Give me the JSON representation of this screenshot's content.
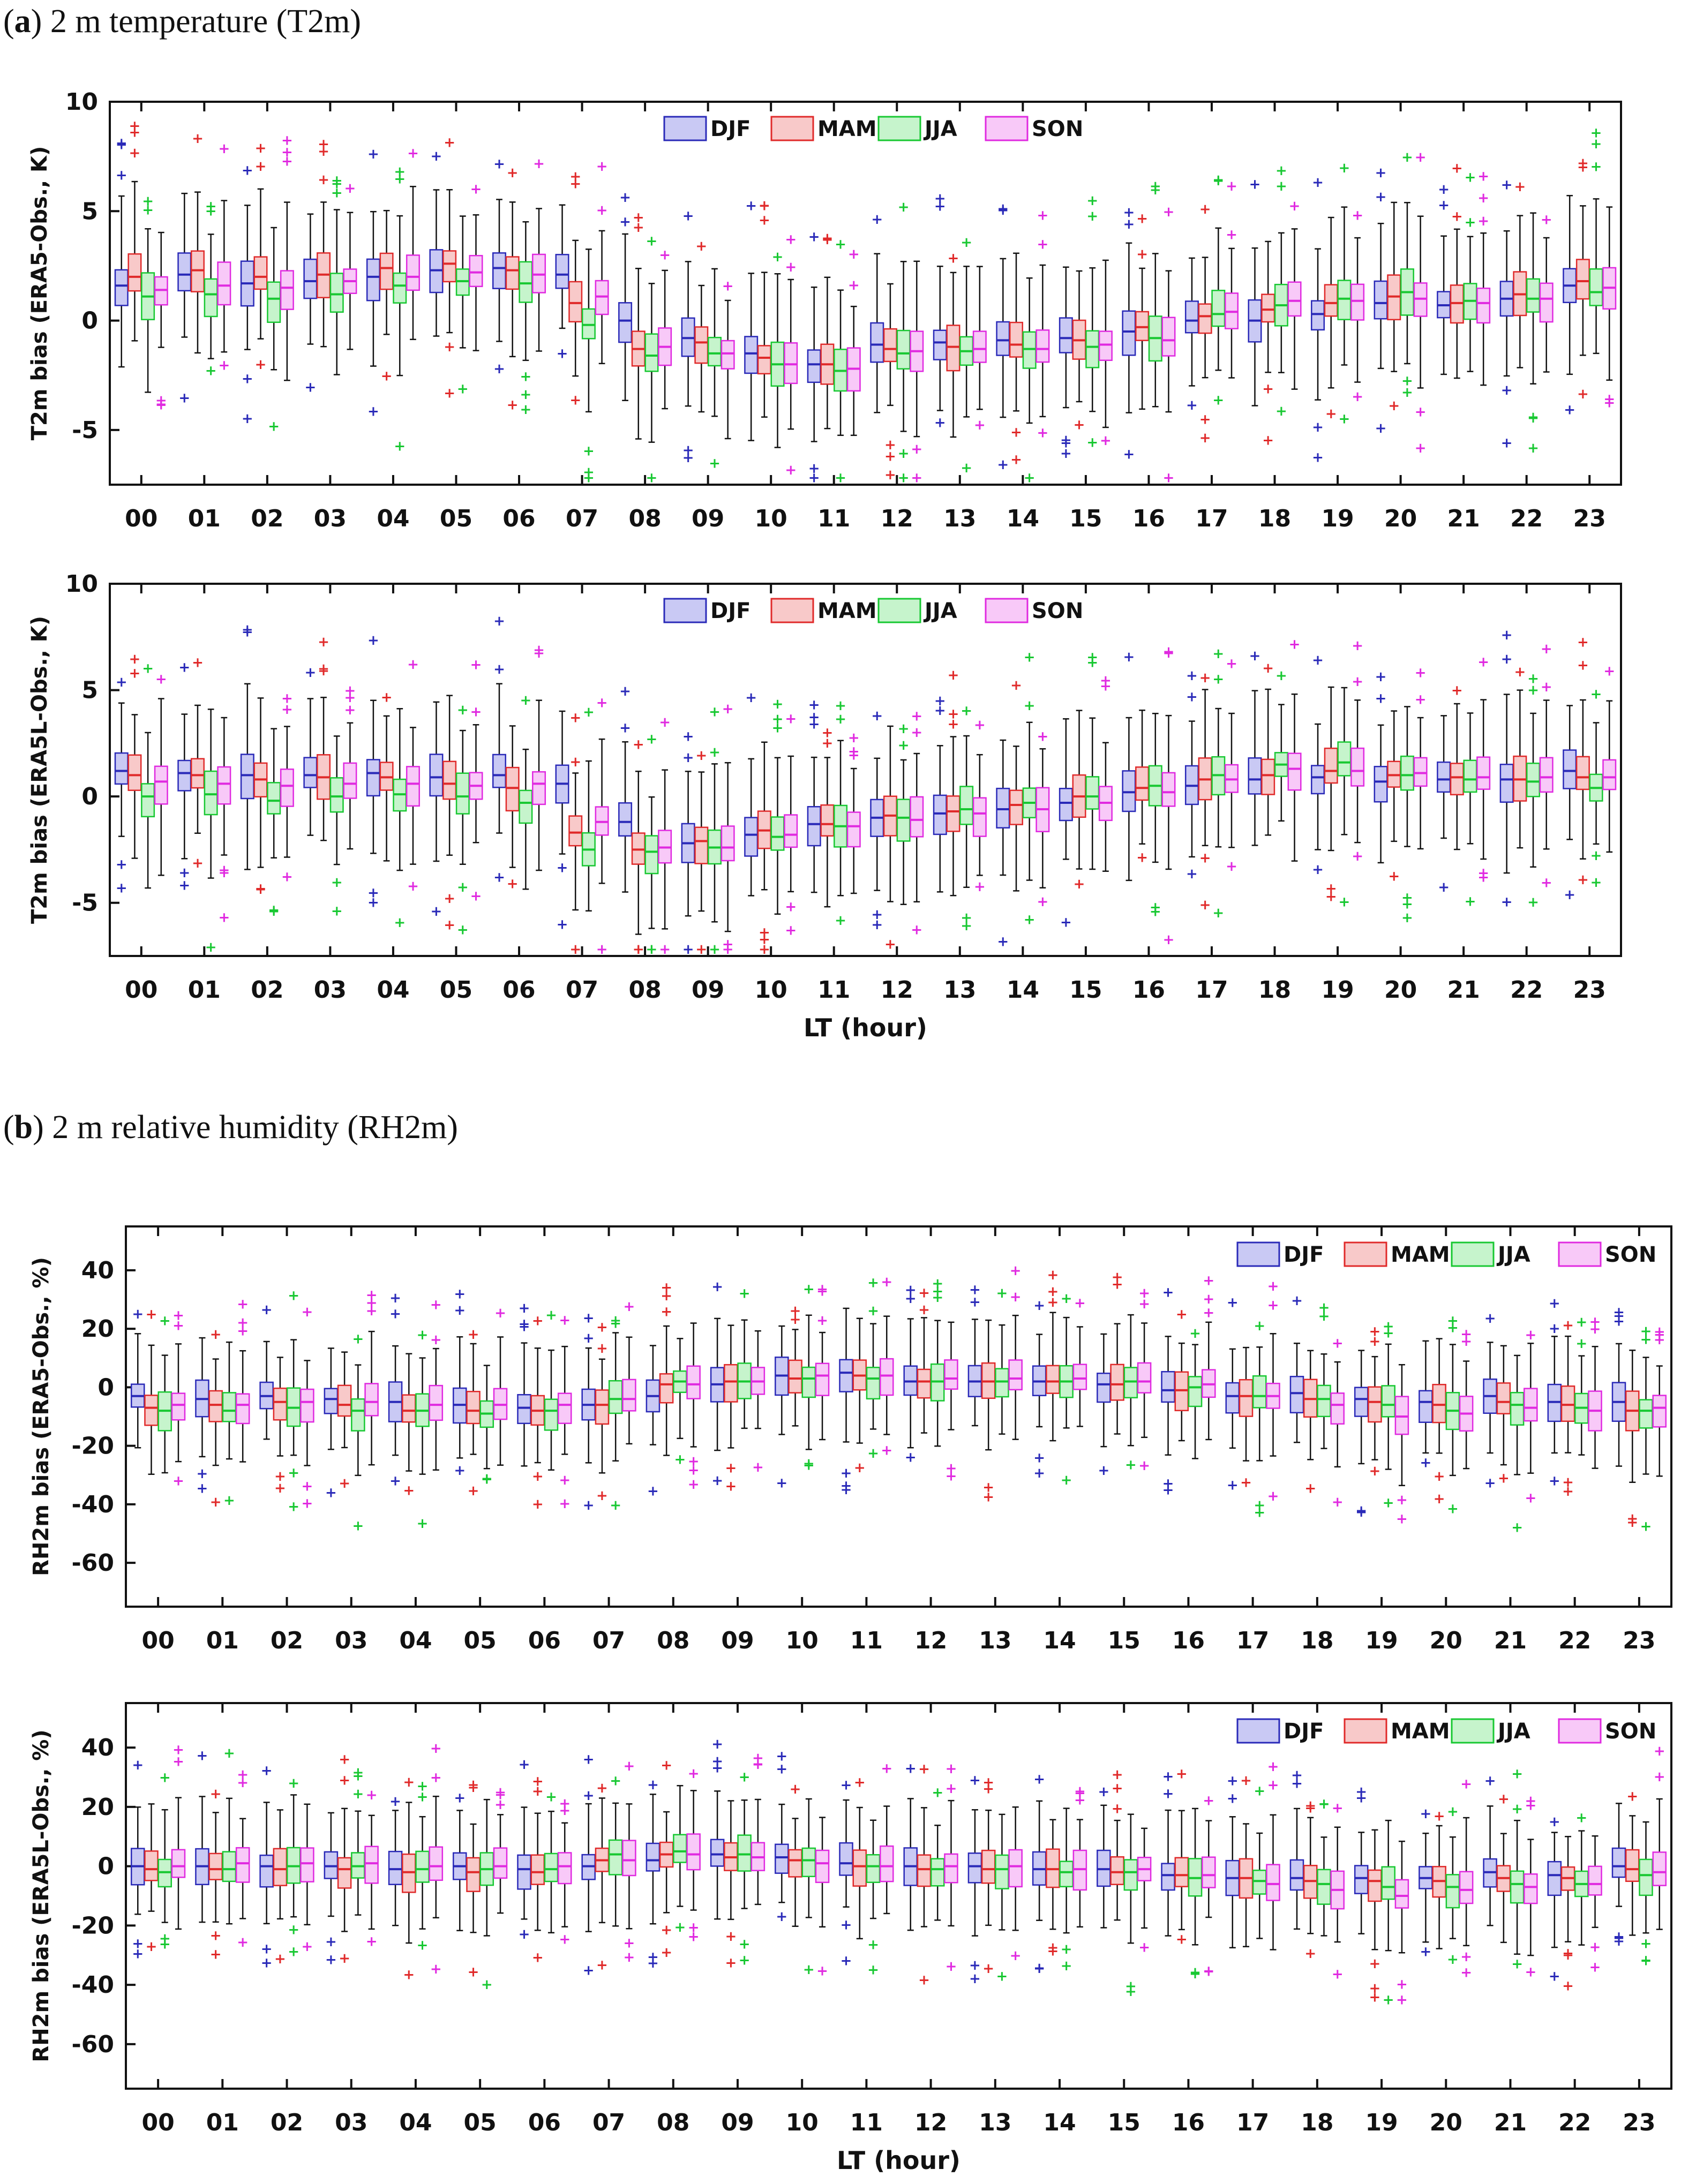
{
  "panels": [
    {
      "bold": "a",
      "text": "2 m temperature (T2m)"
    },
    {
      "bold": "b",
      "text": "2 m relative humidity (RH2m)"
    }
  ],
  "seasons": [
    {
      "name": "DJF",
      "stroke": "#2a2ab8",
      "fill": "#c9c9f4"
    },
    {
      "name": "MAM",
      "stroke": "#e02a2a",
      "fill": "#f8c9c9"
    },
    {
      "name": "JJA",
      "stroke": "#18c832",
      "fill": "#c6f4cc"
    },
    {
      "name": "SON",
      "stroke": "#e02ae0",
      "fill": "#f8c9f8"
    }
  ],
  "common_xlabel": "LT (hour)",
  "chart_data": [
    {
      "type": "box",
      "id": "t2m-era5",
      "ylabel": "T2m bias (ERA5-Obs., K)",
      "xlabel": "",
      "ylim": [
        -7.5,
        10
      ],
      "yticks": [
        10,
        5,
        0,
        -5
      ],
      "categories": [
        "00",
        "01",
        "02",
        "03",
        "04",
        "05",
        "06",
        "07",
        "08",
        "09",
        "10",
        "11",
        "12",
        "13",
        "14",
        "15",
        "16",
        "17",
        "18",
        "19",
        "20",
        "21",
        "22",
        "23"
      ],
      "series": [
        {
          "name": "DJF",
          "median": [
            1.6,
            2.1,
            1.7,
            1.8,
            2.0,
            2.3,
            2.4,
            2.1,
            0.0,
            -0.8,
            -1.5,
            -2.0,
            -1.1,
            -1.0,
            -0.9,
            -0.8,
            -0.5,
            0.0,
            0.0,
            0.3,
            0.8,
            0.7,
            1.0,
            1.6
          ]
        },
        {
          "name": "MAM",
          "median": [
            2.0,
            2.3,
            2.0,
            2.1,
            2.4,
            2.6,
            2.3,
            0.8,
            -1.3,
            -1.0,
            -1.7,
            -2.0,
            -1.3,
            -1.2,
            -1.1,
            -0.9,
            -0.3,
            0.2,
            0.5,
            0.8,
            1.1,
            0.8,
            1.2,
            1.8
          ]
        },
        {
          "name": "JJA",
          "median": [
            1.1,
            1.2,
            1.0,
            1.2,
            1.6,
            1.8,
            1.7,
            -0.2,
            -1.6,
            -1.5,
            -2.0,
            -2.3,
            -1.5,
            -1.4,
            -1.3,
            -1.2,
            -0.8,
            0.3,
            0.7,
            1.0,
            1.3,
            0.9,
            1.0,
            1.3
          ]
        },
        {
          "name": "SON",
          "median": [
            1.4,
            1.6,
            1.5,
            1.8,
            2.0,
            2.2,
            2.1,
            1.1,
            -1.2,
            -1.5,
            -2.0,
            -2.2,
            -1.4,
            -1.3,
            -1.3,
            -1.1,
            -0.9,
            0.4,
            0.9,
            0.9,
            1.0,
            0.8,
            1.0,
            1.5
          ]
        }
      ]
    },
    {
      "type": "box",
      "id": "t2m-era5l",
      "ylabel": "T2m bias (ERA5L-Obs., K)",
      "xlabel": "LT (hour)",
      "ylim": [
        -7.5,
        10
      ],
      "yticks": [
        10,
        5,
        0,
        -5
      ],
      "categories": [
        "00",
        "01",
        "02",
        "03",
        "04",
        "05",
        "06",
        "07",
        "08",
        "09",
        "10",
        "11",
        "12",
        "13",
        "14",
        "15",
        "16",
        "17",
        "18",
        "19",
        "20",
        "21",
        "22",
        "23"
      ],
      "series": [
        {
          "name": "DJF",
          "median": [
            1.2,
            1.1,
            1.0,
            1.0,
            1.1,
            0.9,
            1.0,
            0.6,
            -1.2,
            -2.2,
            -1.8,
            -1.3,
            -1.0,
            -0.8,
            -0.6,
            -0.3,
            0.2,
            0.5,
            0.8,
            0.9,
            0.7,
            0.8,
            0.8,
            1.2
          ]
        },
        {
          "name": "MAM",
          "median": [
            1.0,
            1.0,
            0.8,
            0.9,
            0.9,
            0.6,
            0.4,
            -1.7,
            -2.5,
            -2.1,
            -1.6,
            -1.3,
            -0.9,
            -0.7,
            -0.4,
            0.0,
            0.4,
            0.8,
            1.0,
            1.2,
            1.0,
            0.9,
            0.8,
            0.9
          ]
        },
        {
          "name": "JJA",
          "median": [
            0.0,
            0.1,
            -0.2,
            0.0,
            0.1,
            0.0,
            -0.3,
            -2.5,
            -2.6,
            -2.4,
            -1.9,
            -1.4,
            -1.0,
            -0.6,
            -0.3,
            0.0,
            0.5,
            1.0,
            1.5,
            1.6,
            1.0,
            0.8,
            0.7,
            0.4
          ]
        },
        {
          "name": "SON",
          "median": [
            0.7,
            0.6,
            0.5,
            0.6,
            0.6,
            0.5,
            0.6,
            -1.2,
            -2.4,
            -2.4,
            -1.8,
            -1.4,
            -1.1,
            -0.8,
            -0.6,
            -0.3,
            0.2,
            0.8,
            1.3,
            1.2,
            1.1,
            0.9,
            0.9,
            0.9
          ]
        }
      ]
    },
    {
      "type": "box",
      "id": "rh2m-era5",
      "ylabel": "RH2m bias (ERA5-Obs., %)",
      "xlabel": "",
      "ylim": [
        -75,
        55
      ],
      "yticks": [
        40,
        20,
        0,
        -20,
        -40,
        -60
      ],
      "categories": [
        "00",
        "01",
        "02",
        "03",
        "04",
        "05",
        "06",
        "07",
        "08",
        "09",
        "10",
        "11",
        "12",
        "13",
        "14",
        "15",
        "16",
        "17",
        "18",
        "19",
        "20",
        "21",
        "22",
        "23"
      ],
      "series": [
        {
          "name": "DJF",
          "median": [
            -3,
            -4,
            -3,
            -4,
            -5,
            -6,
            -7,
            -6,
            -3,
            1,
            4,
            5,
            2,
            2,
            2,
            1,
            -1,
            -3,
            -2,
            -4,
            -5,
            -3,
            -5,
            -5
          ]
        },
        {
          "name": "MAM",
          "median": [
            -7,
            -6,
            -5,
            -6,
            -8,
            -8,
            -8,
            -6,
            1,
            2,
            3,
            4,
            2,
            2,
            2,
            1,
            -1,
            -3,
            -4,
            -5,
            -6,
            -5,
            -6,
            -8
          ]
        },
        {
          "name": "JJA",
          "median": [
            -8,
            -8,
            -7,
            -8,
            -8,
            -9,
            -8,
            -4,
            2,
            2,
            3,
            3,
            2,
            2,
            2,
            2,
            0,
            -3,
            -4,
            -6,
            -8,
            -6,
            -7,
            -8
          ]
        },
        {
          "name": "SON",
          "median": [
            -6,
            -6,
            -5,
            -5,
            -6,
            -6,
            -6,
            -4,
            1,
            2,
            4,
            4,
            3,
            3,
            3,
            2,
            1,
            -3,
            -6,
            -10,
            -9,
            -7,
            -8,
            -7
          ]
        }
      ]
    },
    {
      "type": "box",
      "id": "rh2m-era5l",
      "ylabel": "RH2m bias (ERA5L-Obs., %)",
      "xlabel": "LT (hour)",
      "ylim": [
        -75,
        55
      ],
      "yticks": [
        40,
        20,
        0,
        -20,
        -40,
        -60
      ],
      "categories": [
        "00",
        "01",
        "02",
        "03",
        "04",
        "05",
        "06",
        "07",
        "08",
        "09",
        "10",
        "11",
        "12",
        "13",
        "14",
        "15",
        "16",
        "17",
        "18",
        "19",
        "20",
        "21",
        "22",
        "23"
      ],
      "series": [
        {
          "name": "DJF",
          "median": [
            0,
            0,
            0,
            0,
            -1,
            0,
            -1,
            0,
            2,
            4,
            3,
            1,
            0,
            0,
            -1,
            -1,
            -3,
            -4,
            -4,
            -4,
            -4,
            -2,
            -3,
            0
          ]
        },
        {
          "name": "MAM",
          "median": [
            -1,
            -1,
            -1,
            -1,
            -2,
            -2,
            -2,
            2,
            4,
            3,
            2,
            0,
            -1,
            -1,
            -1,
            -2,
            -3,
            -4,
            -5,
            -5,
            -5,
            -4,
            -4,
            -1
          ]
        },
        {
          "name": "JJA",
          "median": [
            -2,
            -1,
            0,
            0,
            -1,
            -1,
            -1,
            4,
            5,
            4,
            2,
            0,
            -1,
            -1,
            -2,
            -2,
            -4,
            -5,
            -6,
            -7,
            -7,
            -6,
            -6,
            -3
          ]
        },
        {
          "name": "SON",
          "median": [
            0,
            1,
            1,
            1,
            0,
            0,
            0,
            2,
            4,
            3,
            1,
            0,
            0,
            0,
            -1,
            -1,
            -3,
            -6,
            -8,
            -10,
            -8,
            -7,
            -6,
            -2
          ]
        }
      ]
    }
  ]
}
